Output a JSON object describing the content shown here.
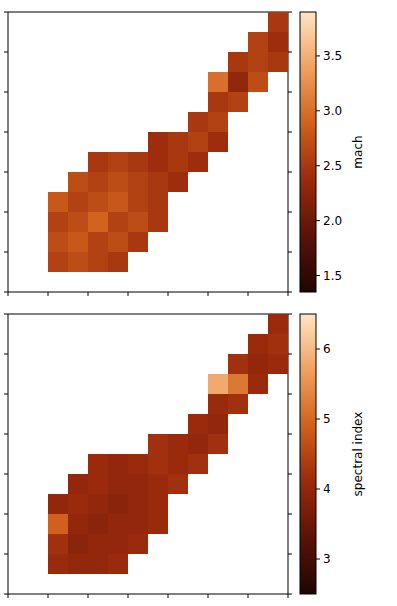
{
  "chart_data": [
    {
      "type": "heatmap",
      "xlim": [
        0,
        14
      ],
      "ylim": [
        0,
        14
      ],
      "xticks": [
        0,
        2,
        4,
        6,
        8,
        10,
        12,
        14
      ],
      "yticks": [
        0,
        2,
        4,
        6,
        8,
        10,
        12,
        14
      ],
      "tick_labels": false,
      "cells": [
        [
          2.5,
          1.5,
          2.6
        ],
        [
          3.5,
          1.5,
          2.7
        ],
        [
          4.5,
          1.5,
          2.6
        ],
        [
          5.5,
          1.5,
          2.5
        ],
        [
          2.5,
          2.5,
          2.7
        ],
        [
          3.5,
          2.5,
          2.8
        ],
        [
          4.5,
          2.5,
          2.6
        ],
        [
          5.5,
          2.5,
          2.7
        ],
        [
          6.5,
          2.5,
          2.5
        ],
        [
          2.5,
          3.5,
          2.6
        ],
        [
          3.5,
          3.5,
          2.7
        ],
        [
          4.5,
          3.5,
          2.9
        ],
        [
          5.5,
          3.5,
          2.6
        ],
        [
          6.5,
          3.5,
          2.7
        ],
        [
          7.5,
          3.5,
          2.5
        ],
        [
          2.5,
          4.5,
          2.8
        ],
        [
          3.5,
          4.5,
          2.6
        ],
        [
          4.5,
          4.5,
          2.7
        ],
        [
          5.5,
          4.5,
          2.8
        ],
        [
          6.5,
          4.5,
          2.6
        ],
        [
          7.5,
          4.5,
          2.5
        ],
        [
          3.5,
          5.5,
          2.7
        ],
        [
          4.5,
          5.5,
          2.6
        ],
        [
          5.5,
          5.5,
          2.7
        ],
        [
          6.5,
          5.5,
          2.6
        ],
        [
          7.5,
          5.5,
          2.5
        ],
        [
          8.5,
          5.5,
          2.4
        ],
        [
          4.5,
          6.5,
          2.5
        ],
        [
          5.5,
          6.5,
          2.6
        ],
        [
          6.5,
          6.5,
          2.5
        ],
        [
          7.5,
          6.5,
          2.4
        ],
        [
          8.5,
          6.5,
          2.5
        ],
        [
          9.5,
          6.5,
          2.4
        ],
        [
          7.5,
          7.5,
          2.4
        ],
        [
          8.5,
          7.5,
          2.5
        ],
        [
          9.5,
          7.5,
          2.6
        ],
        [
          10.5,
          7.5,
          2.4
        ],
        [
          9.5,
          8.5,
          2.5
        ],
        [
          10.5,
          8.5,
          2.6
        ],
        [
          10.5,
          9.5,
          2.5
        ],
        [
          11.5,
          9.5,
          2.6
        ],
        [
          10.5,
          10.5,
          3.0
        ],
        [
          11.5,
          10.5,
          2.3
        ],
        [
          12.5,
          10.5,
          2.7
        ],
        [
          11.5,
          11.5,
          2.5
        ],
        [
          12.5,
          11.5,
          2.6
        ],
        [
          13.5,
          11.5,
          2.5
        ],
        [
          12.5,
          12.5,
          2.6
        ],
        [
          13.5,
          12.5,
          2.4
        ],
        [
          13.5,
          13.5,
          2.5
        ]
      ],
      "colorbar": {
        "label": "mach",
        "range": [
          1.35,
          3.9
        ],
        "ticks": [
          1.5,
          {
            "value": 2,
            "label": "2.0"
          },
          2.5,
          {
            "value": 3,
            "label": "3.0"
          },
          3.5
        ]
      }
    },
    {
      "type": "heatmap",
      "xlim": [
        0,
        14
      ],
      "ylim": [
        0,
        14
      ],
      "xticks": [
        0,
        2,
        4,
        6,
        8,
        10,
        12,
        14
      ],
      "yticks": [
        0,
        2,
        4,
        6,
        8,
        10,
        12,
        14
      ],
      "tick_labels": false,
      "cells": [
        [
          2.5,
          1.5,
          4.1
        ],
        [
          3.5,
          1.5,
          4.0
        ],
        [
          4.5,
          1.5,
          4.0
        ],
        [
          5.5,
          1.5,
          4.1
        ],
        [
          2.5,
          2.5,
          4.2
        ],
        [
          3.5,
          2.5,
          3.9
        ],
        [
          4.5,
          2.5,
          4.0
        ],
        [
          5.5,
          2.5,
          4.0
        ],
        [
          6.5,
          2.5,
          4.1
        ],
        [
          2.5,
          3.5,
          4.9
        ],
        [
          3.5,
          3.5,
          4.0
        ],
        [
          4.5,
          3.5,
          3.9
        ],
        [
          5.5,
          3.5,
          4.0
        ],
        [
          6.5,
          3.5,
          4.0
        ],
        [
          7.5,
          3.5,
          4.1
        ],
        [
          2.5,
          4.5,
          4.0
        ],
        [
          3.5,
          4.5,
          4.1
        ],
        [
          4.5,
          4.5,
          4.0
        ],
        [
          5.5,
          4.5,
          3.9
        ],
        [
          6.5,
          4.5,
          4.0
        ],
        [
          7.5,
          4.5,
          4.1
        ],
        [
          3.5,
          5.5,
          4.0
        ],
        [
          4.5,
          5.5,
          4.1
        ],
        [
          5.5,
          5.5,
          4.0
        ],
        [
          6.5,
          5.5,
          4.0
        ],
        [
          7.5,
          5.5,
          4.1
        ],
        [
          8.5,
          5.5,
          4.2
        ],
        [
          4.5,
          6.5,
          4.1
        ],
        [
          5.5,
          6.5,
          4.0
        ],
        [
          6.5,
          6.5,
          4.1
        ],
        [
          7.5,
          6.5,
          4.2
        ],
        [
          8.5,
          6.5,
          4.1
        ],
        [
          9.5,
          6.5,
          4.2
        ],
        [
          7.5,
          7.5,
          4.2
        ],
        [
          8.5,
          7.5,
          4.1
        ],
        [
          9.5,
          7.5,
          4.0
        ],
        [
          10.5,
          7.5,
          4.2
        ],
        [
          9.5,
          8.5,
          4.1
        ],
        [
          10.5,
          8.5,
          4.0
        ],
        [
          10.5,
          9.5,
          4.1
        ],
        [
          11.5,
          9.5,
          4.2
        ],
        [
          10.5,
          10.5,
          5.8
        ],
        [
          11.5,
          10.5,
          5.2
        ],
        [
          12.5,
          10.5,
          4.1
        ],
        [
          11.5,
          11.5,
          4.2
        ],
        [
          12.5,
          11.5,
          4.0
        ],
        [
          13.5,
          11.5,
          4.1
        ],
        [
          12.5,
          12.5,
          4.1
        ],
        [
          13.5,
          12.5,
          4.2
        ],
        [
          13.5,
          13.5,
          4.1
        ]
      ],
      "colorbar": {
        "label": "spectral index",
        "range": [
          2.5,
          6.5
        ],
        "ticks": [
          3,
          4,
          5,
          6
        ]
      }
    }
  ]
}
